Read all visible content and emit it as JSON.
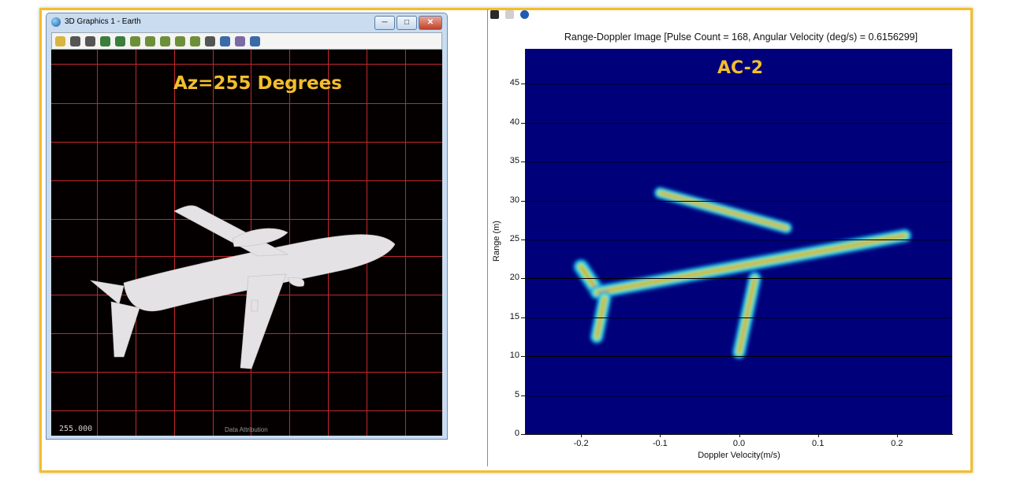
{
  "left_window": {
    "title": "3D Graphics 1 - Earth",
    "overlay_label": "Az=255 Degrees",
    "azimuth_readout": "255.000",
    "attribution": "Data Attribution",
    "toolbar_icons": [
      "notes-icon",
      "pan-icon",
      "zoom-icon",
      "view-icon",
      "map-icon",
      "eye-icon",
      "tree-icon",
      "object-icon",
      "cube-icon",
      "compass-icon",
      "measure-icon",
      "globe-icon",
      "ruler-icon",
      "globe-icon"
    ]
  },
  "right_pane": {
    "plot_title": "Range-Doppler Image [Pulse Count = 168, Angular Velocity (deg/s) = 0.6156299]",
    "overlay_label": "AC-2"
  },
  "chart_data": {
    "type": "heatmap",
    "title": "Range-Doppler Image [Pulse Count = 168, Angular Velocity (deg/s) = 0.6156299]",
    "xlabel": "Doppler Velocity(m/s)",
    "ylabel": "Range (m)",
    "xlim": [
      -0.27,
      0.27
    ],
    "ylim": [
      0,
      49.5
    ],
    "x_ticks": [
      "-0.2",
      "-0.1",
      "0.0",
      "0.1",
      "0.2"
    ],
    "x_tick_values": [
      -0.2,
      -0.1,
      0.0,
      0.1,
      0.2
    ],
    "y_ticks": [
      "0",
      "5",
      "10",
      "15",
      "20",
      "25",
      "30",
      "35",
      "40",
      "45"
    ],
    "y_tick_values": [
      0,
      5,
      10,
      15,
      20,
      25,
      30,
      35,
      40,
      45
    ],
    "grid": true,
    "background_color": "#00007a",
    "blobs": [
      {
        "x": [
          -0.2,
          -0.18
        ],
        "y": [
          21.5,
          18.5
        ]
      },
      {
        "x": [
          -0.18,
          0.21
        ],
        "y": [
          18.2,
          25.5
        ]
      },
      {
        "x": [
          -0.17,
          -0.18
        ],
        "y": [
          17.5,
          12.5
        ]
      },
      {
        "x": [
          -0.1,
          0.06
        ],
        "y": [
          31.0,
          26.5
        ]
      },
      {
        "x": [
          0.02,
          0.0
        ],
        "y": [
          20.0,
          10.5
        ]
      }
    ]
  }
}
